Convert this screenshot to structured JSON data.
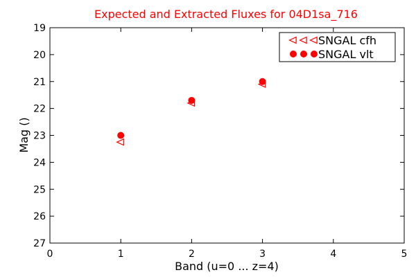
{
  "chart_data": {
    "type": "scatter",
    "title": "Expected and Extracted Fluxes for 04D1sa_716",
    "xlabel": "Band (u=0 ... z=4)",
    "ylabel": "Mag ()",
    "xlim": [
      0,
      5
    ],
    "ylim": [
      27,
      19
    ],
    "y_axis_inverted": true,
    "x_ticks": [
      0,
      1,
      2,
      3,
      4,
      5
    ],
    "y_ticks": [
      19,
      20,
      21,
      22,
      23,
      24,
      25,
      26,
      27
    ],
    "grid": false,
    "legend_position": "top-right",
    "title_color": "#ff0000",
    "series": [
      {
        "name": "SNGAL cfh",
        "marker": "triangle-left-open",
        "color": "#ff0000",
        "x": [
          1,
          2,
          3
        ],
        "y": [
          23.25,
          21.8,
          21.1
        ]
      },
      {
        "name": "SNGAL vlt",
        "marker": "circle-filled",
        "color": "#ff0000",
        "x": [
          1,
          2,
          3
        ],
        "y": [
          23.0,
          21.7,
          21.0
        ]
      }
    ]
  }
}
